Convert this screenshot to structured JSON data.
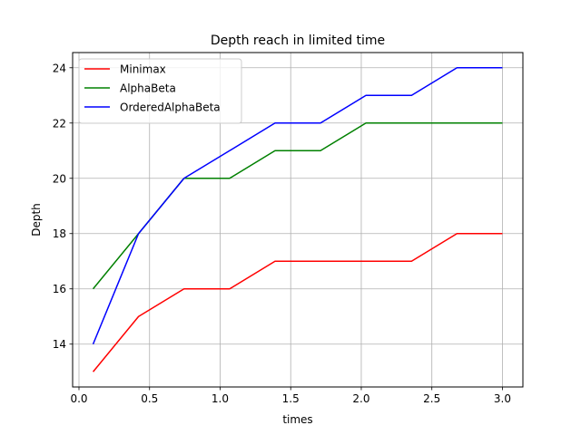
{
  "chart_data": {
    "type": "line",
    "title": "Depth reach in limited time",
    "xlabel": "times",
    "ylabel": "Depth",
    "xlim": [
      -0.045,
      3.145
    ],
    "ylim": [
      12.45,
      24.55
    ],
    "xticks": [
      0.0,
      0.5,
      1.0,
      1.5,
      2.0,
      2.5,
      3.0
    ],
    "xtick_labels": [
      "0.0",
      "0.5",
      "1.0",
      "1.5",
      "2.0",
      "2.5",
      "3.0"
    ],
    "yticks": [
      14,
      16,
      18,
      20,
      22,
      24
    ],
    "ytick_labels": [
      "14",
      "16",
      "18",
      "20",
      "22",
      "24"
    ],
    "grid": true,
    "legend_position": "upper-left",
    "x": [
      0.1,
      0.422,
      0.744,
      1.067,
      1.389,
      1.711,
      2.033,
      2.356,
      2.678,
      3.0
    ],
    "series": [
      {
        "name": "Minimax",
        "color": "#ff0000",
        "values": [
          13,
          15,
          16,
          16,
          17,
          17,
          17,
          17,
          18,
          18
        ]
      },
      {
        "name": "AlphaBeta",
        "color": "#008000",
        "values": [
          16,
          18,
          20,
          20,
          21,
          21,
          22,
          22,
          22,
          22
        ]
      },
      {
        "name": "OrderedAlphaBeta",
        "color": "#0000ff",
        "values": [
          14,
          18,
          20,
          21,
          22,
          22,
          23,
          23,
          24,
          24
        ]
      }
    ]
  }
}
